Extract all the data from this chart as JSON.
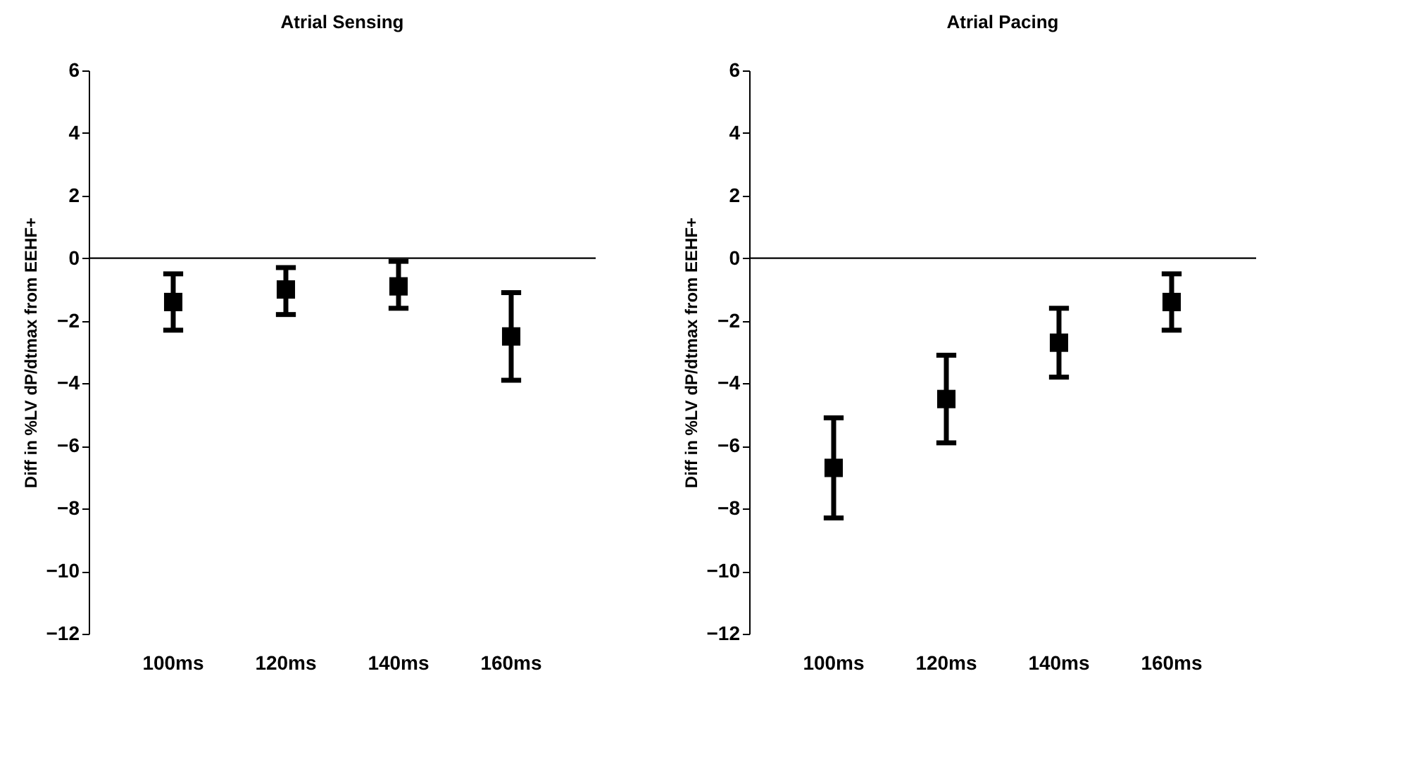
{
  "chart_data": [
    {
      "type": "scatter",
      "title": "Atrial Sensing",
      "ylabel": "Diff in %LV dP/dtmax from EEHF+",
      "categories": [
        "100ms",
        "120ms",
        "140ms",
        "160ms"
      ],
      "series": [
        {
          "color": "#000000",
          "values": [
            -1.4,
            -1.0,
            -0.9,
            -2.5
          ],
          "errors": [
            [
              -2.3,
              -0.5
            ],
            [
              -1.8,
              -0.3
            ],
            [
              -1.6,
              -0.1
            ],
            [
              -3.9,
              -1.1
            ]
          ]
        }
      ],
      "ylim": [
        -12,
        6
      ],
      "yticks": [
        -12,
        -10,
        -8,
        -6,
        -4,
        -2,
        0,
        2,
        4,
        6
      ],
      "ref_lines": [
        {
          "axis": "y",
          "value": 0
        }
      ],
      "marker": "square",
      "grid": false,
      "legend": false
    },
    {
      "type": "scatter",
      "title": "Atrial Pacing",
      "ylabel": "Diff in %LV dP/dtmax from EEHF+",
      "categories": [
        "100ms",
        "120ms",
        "140ms",
        "160ms"
      ],
      "series": [
        {
          "color": "#000000",
          "values": [
            -6.7,
            -4.5,
            -2.7,
            -1.4
          ],
          "errors": [
            [
              -8.3,
              -5.1
            ],
            [
              -5.9,
              -3.1
            ],
            [
              -3.8,
              -1.6
            ],
            [
              -2.3,
              -0.5
            ]
          ]
        }
      ],
      "ylim": [
        -12,
        6
      ],
      "yticks": [
        -12,
        -10,
        -8,
        -6,
        -4,
        -2,
        0,
        2,
        4,
        6
      ],
      "ref_lines": [
        {
          "axis": "y",
          "value": 0
        }
      ],
      "marker": "square",
      "grid": false,
      "legend": false
    }
  ]
}
